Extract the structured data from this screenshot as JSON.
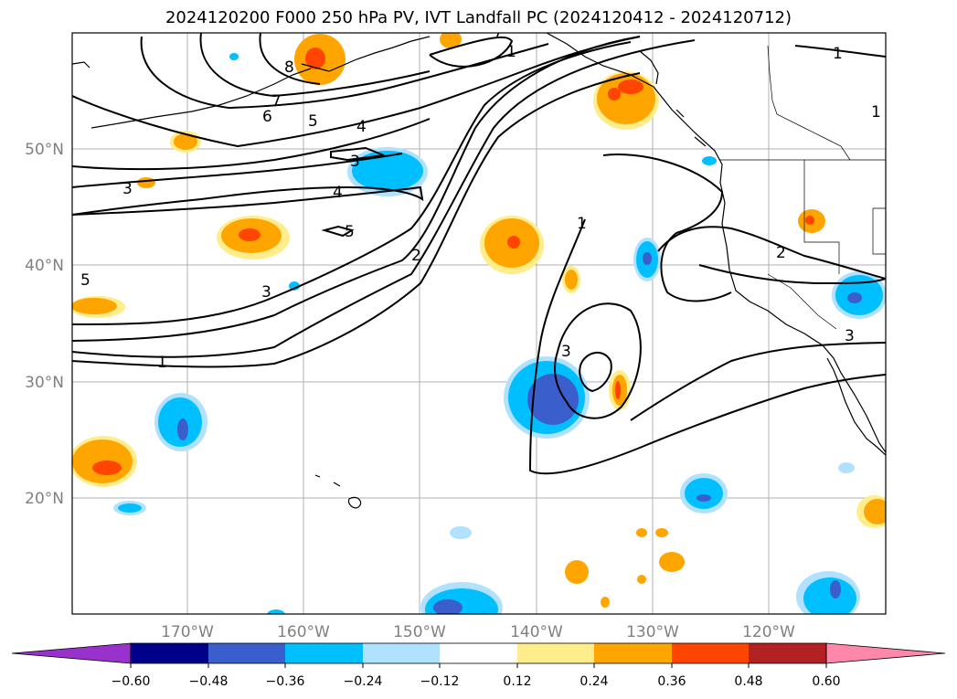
{
  "title": "2024120200 F000 250 hPa PV, IVT Landfall PC (2024120412 - 2024120712)",
  "lat_labels": [
    "50°N",
    "40°N",
    "30°N",
    "20°N"
  ],
  "lon_labels": [
    "170°W",
    "160°W",
    "150°W",
    "140°W",
    "130°W",
    "120°W"
  ],
  "colorbar": {
    "colors": [
      "#9932cc",
      "#00008b",
      "#3a5fcd",
      "#00bfff",
      "#b0e2ff",
      "#ffffff",
      "#ffec8b",
      "#ffa500",
      "#ff4500",
      "#b22222",
      "#ff88aa"
    ],
    "tick_labels": [
      "−0.60",
      "−0.48",
      "−0.36",
      "−0.24",
      "−0.12",
      "0.12",
      "0.24",
      "0.36",
      "0.48",
      "0.60"
    ]
  },
  "contour_labels": [
    "1",
    "7",
    "8",
    "7",
    "6",
    "5",
    "4",
    "1",
    "1",
    "3",
    "3",
    "4",
    "5",
    "5",
    "3",
    "2",
    "1",
    "1",
    "2",
    "3",
    "3"
  ]
}
